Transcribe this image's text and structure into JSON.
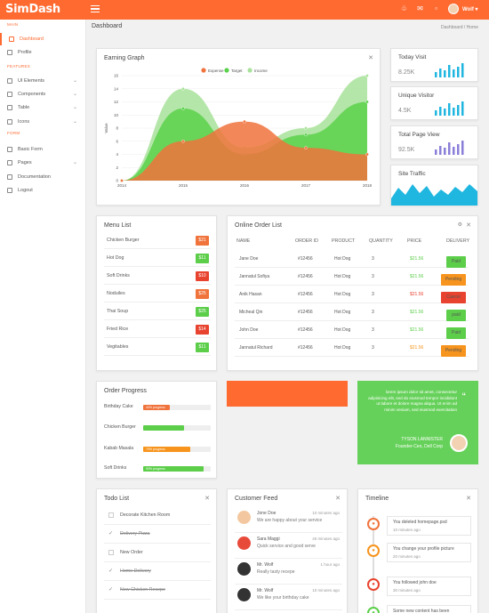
{
  "app": {
    "logo": "SimDash",
    "user": "Wolf"
  },
  "colors": {
    "accent": "#ff6a30",
    "green": "#5cce4a",
    "red": "#e8432f",
    "orange": "#f7941d",
    "cyan": "#1fb6e0",
    "purple": "#8a7fd8"
  },
  "sidebar": {
    "sections": [
      "MAIN",
      "FEATURES",
      "FORM"
    ],
    "items": [
      {
        "label": "Dashboard",
        "icon": "home-icon",
        "active": true
      },
      {
        "label": "Profile",
        "icon": "user-icon"
      },
      {
        "label": "UI Elements",
        "icon": "layers-icon",
        "chevron": true
      },
      {
        "label": "Components",
        "icon": "puzzle-icon",
        "chevron": true
      },
      {
        "label": "Table",
        "icon": "table-icon",
        "chevron": true
      },
      {
        "label": "Icons",
        "icon": "heart-icon",
        "chevron": true
      },
      {
        "label": "Basic Form",
        "icon": "form-icon"
      },
      {
        "label": "Pages",
        "icon": "pages-icon",
        "chevron": true
      },
      {
        "label": "Documentation",
        "icon": "doc-icon"
      },
      {
        "label": "Logout",
        "icon": "logout-icon"
      }
    ]
  },
  "header": {
    "title": "Dashboard",
    "breadcrumb": "Dashboard   /   Home"
  },
  "earning": {
    "title": "Earning Graph"
  },
  "chart_data": {
    "type": "area",
    "title": "Earning Graph",
    "ylabel": "Value",
    "x": [
      "2014",
      "2015",
      "2016",
      "2017",
      "2018"
    ],
    "ylim": [
      0,
      16
    ],
    "yticks": [
      "0",
      "2",
      "4",
      "6",
      "8",
      "10",
      "12",
      "14",
      "16"
    ],
    "series": [
      {
        "name": "Expense",
        "color": "#f0733c",
        "values": [
          0,
          6,
          9,
          5,
          4
        ]
      },
      {
        "name": "Target",
        "color": "#5ad14b",
        "values": [
          0,
          11,
          4,
          7,
          12
        ]
      },
      {
        "name": "Income",
        "color": "#a8e29a",
        "values": [
          0,
          14,
          5,
          8,
          16
        ]
      }
    ],
    "legend": "top-center"
  },
  "stats": [
    {
      "title": "Today Visit",
      "value": "8.25K",
      "color": "#1fb6e0"
    },
    {
      "title": "Unique Visitor",
      "value": "4.5K",
      "color": "#1fb6e0"
    },
    {
      "title": "Total Page View",
      "value": "92.5K",
      "color": "#8a7fd8"
    },
    {
      "title": "Site Traffic",
      "value": "",
      "color": "#1fb6e0"
    }
  ],
  "menu": {
    "title": "Menu List",
    "items": [
      {
        "name": "Chicken Burger",
        "price": "$21",
        "color": "#f0733c"
      },
      {
        "name": "Hot Dog",
        "price": "$11",
        "color": "#5cce4a"
      },
      {
        "name": "Soft Drinks",
        "price": "$10",
        "color": "#e8432f"
      },
      {
        "name": "Noduiles",
        "price": "$25",
        "color": "#f0733c"
      },
      {
        "name": "Thai Soup",
        "price": "$25",
        "color": "#5cce4a"
      },
      {
        "name": "Fried Rice",
        "price": "$14",
        "color": "#e8432f"
      },
      {
        "name": "Vegitables",
        "price": "$11",
        "color": "#5cce4a"
      }
    ]
  },
  "orders": {
    "title": "Online Order List",
    "headers": [
      "NAME",
      "ORDER ID",
      "PRODUCT",
      "QUANTITY",
      "PRICE",
      "DELIVERY"
    ],
    "rows": [
      {
        "name": "Jane Doe",
        "id": "#12456",
        "product": "Hot Dog",
        "qty": "3",
        "price": "$21.56",
        "pcolor": "#5cce4a",
        "status": "Paid",
        "scolor": "#5cce4a"
      },
      {
        "name": "Jannatul Sofiya",
        "id": "#12456",
        "product": "Hot Dog",
        "qty": "3",
        "price": "$21.56",
        "pcolor": "#5cce4a",
        "status": "Pending",
        "scolor": "#f7941d"
      },
      {
        "name": "Anik Hasan",
        "id": "#12456",
        "product": "Hot Dog",
        "qty": "3",
        "price": "$21.56",
        "pcolor": "#e8432f",
        "status": "Cancel",
        "scolor": "#e8432f"
      },
      {
        "name": "Micheal Qin",
        "id": "#12456",
        "product": "Hot Dog",
        "qty": "3",
        "price": "$21.56",
        "pcolor": "#5cce4a",
        "status": "paid",
        "scolor": "#5cce4a"
      },
      {
        "name": "John Doe",
        "id": "#12456",
        "product": "Hot Dog",
        "qty": "3",
        "price": "$21.56",
        "pcolor": "#5cce4a",
        "status": "Paid",
        "scolor": "#5cce4a"
      },
      {
        "name": "Jannatul Richard",
        "id": "#12456",
        "product": "Hot Dog",
        "qty": "3",
        "price": "$21.56",
        "pcolor": "#f7941d",
        "status": "Pending",
        "scolor": "#f7941d"
      }
    ]
  },
  "progress": {
    "title": "Order Progress",
    "items": [
      {
        "label": "Birthday Cake",
        "pct": 40,
        "text": "40% progress",
        "color": "#f0733c"
      },
      {
        "label": "Chicken Burger",
        "pct": 60,
        "text": "",
        "color": "#5cce4a"
      },
      {
        "label": "Kabab Masala",
        "pct": 70,
        "text": "70% progress",
        "color": "#f7941d"
      },
      {
        "label": "Soft Drinks",
        "pct": 90,
        "text": "90% progress",
        "color": "#5cce4a"
      }
    ]
  },
  "testimonial": {
    "text": "lorem ipsum dolor sit amet, consectetur adipisicing elit, sed do eiusmod tempor incididunt ut labore et dolore magna aliqua. Ut enim ad minim veniam, sed eiusmod exercitation",
    "name": "TYSON LANNISTER",
    "role": "Founder-Ceo, Dell Corp"
  },
  "todo": {
    "title": "Todo List",
    "items": [
      {
        "text": "Decorate Kitchen Room",
        "done": false
      },
      {
        "text": "Delivery Pizza",
        "done": true
      },
      {
        "text": "New Order",
        "done": false
      },
      {
        "text": "Home Delivery",
        "done": true
      },
      {
        "text": "New Chicken Recepe",
        "done": true
      }
    ]
  },
  "feed": {
    "title": "Customer Feed",
    "items": [
      {
        "name": "Jone Doe",
        "time": "10 minutes ago",
        "text": "We are happy about your service",
        "av": "#f3c8a0"
      },
      {
        "name": "Sara Maggi",
        "time": "40 minutes ago",
        "text": "Quick service and good serve",
        "av": "#e84a3a"
      },
      {
        "name": "Mr. Wolf",
        "time": "1 hour ago",
        "text": "Really tasty recepe",
        "av": "#333333"
      },
      {
        "name": "Mr. Wolf",
        "time": "10 minutes ago",
        "text": "We like your birthday cake",
        "av": "#333333"
      }
    ]
  },
  "timeline": {
    "title": "Timeline",
    "items": [
      {
        "text": "You deleted homepage.psd",
        "time": "10 minutes ago",
        "color": "#f0733c"
      },
      {
        "text": "You change your profile picture",
        "time": "20 minutes ago",
        "color": "#f7941d"
      },
      {
        "text": "You followed john doe",
        "time": "30 minutes ago",
        "color": "#e8432f"
      },
      {
        "text": "Some new content has been",
        "time": "",
        "color": "#5cce4a"
      }
    ]
  }
}
